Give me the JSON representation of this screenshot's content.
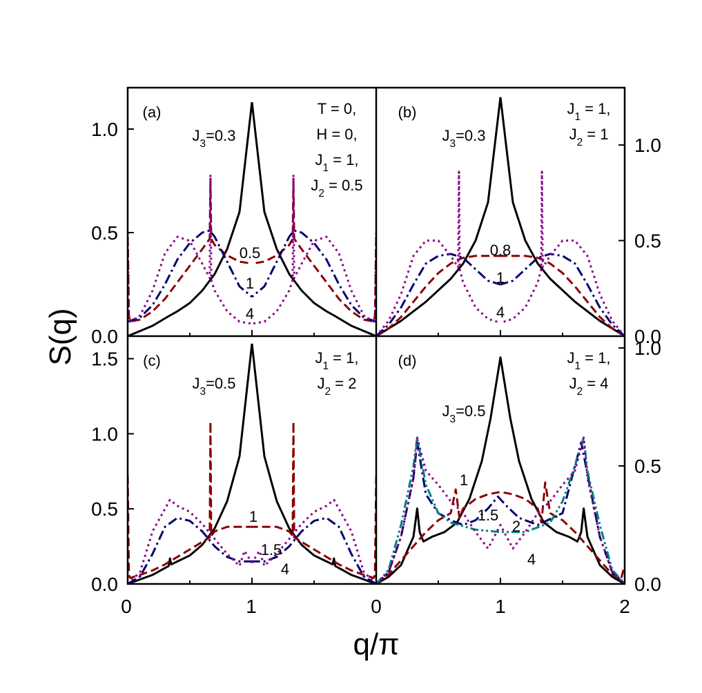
{
  "figure": {
    "ylabel": "S(q)",
    "xlabel": "q/π",
    "x_ticks": [
      "0",
      "1",
      "0",
      "1",
      "2"
    ]
  },
  "colors": {
    "black": "#000000",
    "red": "#8b0000",
    "blue": "#00006e",
    "purple": "#8b008b",
    "teal": "#008080"
  },
  "chart_data": [
    {
      "type": "line",
      "panel": "a",
      "panel_label": "(a)",
      "xlim": [
        0,
        1
      ],
      "ylim": [
        0,
        1.2
      ],
      "y_ticks": [
        "0.0",
        "0.5",
        "1.0"
      ],
      "y_side": "left",
      "annotation_lines": [
        "T = 0,",
        "H = 0,",
        "J1 = 1,",
        "J2 = 0.5"
      ],
      "curve_labels": [
        "J3=0.3",
        "0.5",
        "1",
        "4"
      ],
      "series": [
        {
          "label": "0.3",
          "color": "black",
          "dash": "solid",
          "x": [
            0,
            0.1,
            0.17,
            0.2,
            0.25,
            0.3,
            0.35,
            0.4,
            0.45,
            0.5
          ],
          "y": [
            0.0,
            0.05,
            0.1,
            0.12,
            0.16,
            0.22,
            0.3,
            0.42,
            0.6,
            1.13
          ]
        },
        {
          "label": "0.5",
          "color": "red",
          "dash": "dash",
          "x": [
            0,
            0.005,
            0.01,
            0.05,
            0.1,
            0.15,
            0.2,
            0.25,
            0.3,
            0.33,
            0.333,
            0.336,
            0.35,
            0.4,
            0.45,
            0.5
          ],
          "y": [
            0.48,
            0.1,
            0.07,
            0.08,
            0.12,
            0.18,
            0.26,
            0.34,
            0.42,
            0.47,
            0.76,
            0.47,
            0.44,
            0.39,
            0.36,
            0.35
          ]
        },
        {
          "label": "1",
          "color": "blue",
          "dash": "dashdot",
          "x": [
            0,
            0.05,
            0.1,
            0.15,
            0.2,
            0.25,
            0.3,
            0.33,
            0.35,
            0.4,
            0.45,
            0.5
          ],
          "y": [
            0.07,
            0.09,
            0.15,
            0.25,
            0.37,
            0.45,
            0.5,
            0.51,
            0.48,
            0.36,
            0.24,
            0.19
          ]
        },
        {
          "label": "4",
          "color": "purple",
          "dash": "dot",
          "x": [
            0,
            0.005,
            0.01,
            0.05,
            0.1,
            0.15,
            0.2,
            0.25,
            0.3,
            0.33,
            0.333,
            0.336,
            0.35,
            0.4,
            0.45,
            0.5
          ],
          "y": [
            0.5,
            0.09,
            0.07,
            0.1,
            0.22,
            0.4,
            0.48,
            0.46,
            0.35,
            0.28,
            0.78,
            0.27,
            0.22,
            0.12,
            0.07,
            0.06
          ]
        }
      ]
    },
    {
      "type": "line",
      "panel": "b",
      "panel_label": "(b)",
      "xlim": [
        0,
        1
      ],
      "ylim": [
        0,
        1.3
      ],
      "y_ticks": [
        "0.0",
        "0.5",
        "1.0"
      ],
      "y_side": "right",
      "annotation_lines": [
        "J1 = 1,",
        "J2 = 1"
      ],
      "curve_labels": [
        "J3=0.3",
        "0.8",
        "1",
        "4"
      ],
      "series": [
        {
          "label": "0.3",
          "color": "black",
          "dash": "solid",
          "x": [
            0,
            0.1,
            0.2,
            0.3,
            0.35,
            0.4,
            0.45,
            0.5
          ],
          "y": [
            0.0,
            0.08,
            0.18,
            0.3,
            0.38,
            0.5,
            0.7,
            1.25
          ]
        },
        {
          "label": "0.8",
          "color": "red",
          "dash": "dash",
          "x": [
            0,
            0.05,
            0.1,
            0.15,
            0.2,
            0.25,
            0.3,
            0.33,
            0.35,
            0.4,
            0.45,
            0.5
          ],
          "y": [
            0.0,
            0.04,
            0.1,
            0.18,
            0.26,
            0.33,
            0.38,
            0.4,
            0.41,
            0.42,
            0.42,
            0.42
          ]
        },
        {
          "label": "1",
          "color": "blue",
          "dash": "dashdot",
          "x": [
            0,
            0.05,
            0.1,
            0.15,
            0.2,
            0.25,
            0.3,
            0.35,
            0.4,
            0.45,
            0.5
          ],
          "y": [
            0.0,
            0.06,
            0.15,
            0.27,
            0.38,
            0.42,
            0.43,
            0.41,
            0.35,
            0.29,
            0.27
          ]
        },
        {
          "label": "4",
          "color": "purple",
          "dash": "dot",
          "x": [
            0,
            0.05,
            0.1,
            0.15,
            0.2,
            0.25,
            0.3,
            0.33,
            0.333,
            0.336,
            0.35,
            0.4,
            0.45,
            0.5
          ],
          "y": [
            0.0,
            0.08,
            0.22,
            0.42,
            0.5,
            0.5,
            0.42,
            0.36,
            0.86,
            0.35,
            0.28,
            0.15,
            0.09,
            0.07
          ]
        }
      ]
    },
    {
      "type": "line",
      "panel": "c",
      "panel_label": "(c)",
      "xlim": [
        0,
        1
      ],
      "ylim": [
        0,
        1.65
      ],
      "y_ticks": [
        "0.0",
        "0.5",
        "1.0",
        "1.5"
      ],
      "y_side": "left",
      "annotation_lines": [
        "J1 = 1,",
        "J2 = 2"
      ],
      "curve_labels": [
        "J3=0.5",
        "1",
        "1.5",
        "4"
      ],
      "series": [
        {
          "label": "0.5",
          "color": "black",
          "dash": "solid",
          "x": [
            0,
            0.1,
            0.165,
            0.17,
            0.175,
            0.2,
            0.25,
            0.3,
            0.35,
            0.4,
            0.45,
            0.5
          ],
          "y": [
            0.0,
            0.06,
            0.12,
            0.17,
            0.13,
            0.15,
            0.19,
            0.26,
            0.37,
            0.55,
            0.85,
            1.6
          ]
        },
        {
          "label": "1",
          "color": "red",
          "dash": "dash",
          "x": [
            0,
            0.005,
            0.01,
            0.05,
            0.1,
            0.15,
            0.2,
            0.25,
            0.3,
            0.33,
            0.333,
            0.336,
            0.35,
            0.4,
            0.45,
            0.5
          ],
          "y": [
            0.72,
            0.06,
            0.04,
            0.06,
            0.09,
            0.13,
            0.18,
            0.23,
            0.28,
            0.31,
            1.08,
            0.32,
            0.35,
            0.38,
            0.38,
            0.38
          ]
        },
        {
          "label": "1.5",
          "color": "blue",
          "dash": "dashdot",
          "x": [
            0,
            0.05,
            0.1,
            0.15,
            0.2,
            0.25,
            0.3,
            0.35,
            0.4,
            0.45,
            0.5
          ],
          "y": [
            0.0,
            0.05,
            0.2,
            0.38,
            0.44,
            0.42,
            0.35,
            0.25,
            0.18,
            0.15,
            0.15
          ]
        },
        {
          "label": "4",
          "color": "purple",
          "dash": "dot",
          "x": [
            0,
            0.05,
            0.1,
            0.15,
            0.17,
            0.2,
            0.25,
            0.3,
            0.35,
            0.4,
            0.45,
            0.47,
            0.5
          ],
          "y": [
            0.0,
            0.08,
            0.35,
            0.5,
            0.56,
            0.52,
            0.48,
            0.4,
            0.3,
            0.2,
            0.12,
            0.22,
            0.14
          ]
        }
      ]
    },
    {
      "type": "line",
      "panel": "d",
      "panel_label": "(d)",
      "xlim": [
        0,
        2
      ],
      "ylim": [
        0,
        1.05
      ],
      "y_ticks": [
        "0.0",
        "0.5",
        "1.0"
      ],
      "y_side": "right",
      "annotation_lines": [
        "J1 = 1,",
        "J2 = 4"
      ],
      "curve_labels": [
        "J3=0.5",
        "1",
        "1.5",
        "2",
        "4"
      ],
      "series": [
        {
          "label": "0.5",
          "color": "black",
          "dash": "solid",
          "x": [
            0,
            0.1,
            0.2,
            0.3,
            0.33,
            0.35,
            0.38,
            0.45,
            0.55,
            0.65,
            0.75,
            0.85,
            0.92,
            1.0,
            1.08,
            1.15,
            1.25,
            1.35,
            1.45,
            1.55,
            1.62,
            1.65,
            1.67,
            1.7,
            1.8,
            1.9,
            2.0
          ],
          "y": [
            0.0,
            0.03,
            0.08,
            0.2,
            0.32,
            0.22,
            0.18,
            0.2,
            0.22,
            0.26,
            0.36,
            0.52,
            0.7,
            0.96,
            0.7,
            0.52,
            0.36,
            0.26,
            0.22,
            0.2,
            0.18,
            0.22,
            0.32,
            0.2,
            0.08,
            0.03,
            0.0
          ]
        },
        {
          "label": "1",
          "color": "red",
          "dash": "dash",
          "x": [
            0,
            0.1,
            0.2,
            0.3,
            0.4,
            0.5,
            0.6,
            0.64,
            0.67,
            0.7,
            0.8,
            0.9,
            1.0,
            1.1,
            1.2,
            1.3,
            1.33,
            1.36,
            1.4,
            1.5,
            1.6,
            1.7,
            1.8,
            1.9,
            1.97,
            2.0
          ],
          "y": [
            0.0,
            0.04,
            0.1,
            0.16,
            0.22,
            0.27,
            0.3,
            0.4,
            0.28,
            0.32,
            0.36,
            0.38,
            0.39,
            0.38,
            0.36,
            0.32,
            0.26,
            0.43,
            0.3,
            0.27,
            0.22,
            0.16,
            0.1,
            0.04,
            0.02,
            0.08
          ]
        },
        {
          "label": "1.5",
          "color": "blue",
          "dash": "dashdot",
          "x": [
            0,
            0.1,
            0.2,
            0.3,
            0.33,
            0.4,
            0.5,
            0.6,
            0.7,
            0.8,
            0.9,
            0.98,
            1.05,
            1.15,
            1.3,
            1.5,
            1.65,
            1.8,
            1.9,
            2.0
          ],
          "y": [
            0.0,
            0.05,
            0.2,
            0.45,
            0.6,
            0.38,
            0.3,
            0.27,
            0.25,
            0.27,
            0.32,
            0.37,
            0.33,
            0.28,
            0.25,
            0.3,
            0.6,
            0.2,
            0.05,
            0.0
          ]
        },
        {
          "label": "2",
          "color": "teal",
          "dash": "dashdotdot",
          "x": [
            0,
            0.1,
            0.2,
            0.3,
            0.33,
            0.4,
            0.5,
            0.6,
            0.8,
            1.0,
            1.2,
            1.4,
            1.5,
            1.6,
            1.67,
            1.7,
            1.8,
            1.9,
            2.0
          ],
          "y": [
            0.0,
            0.06,
            0.25,
            0.5,
            0.62,
            0.42,
            0.3,
            0.26,
            0.23,
            0.22,
            0.22,
            0.26,
            0.35,
            0.5,
            0.62,
            0.48,
            0.25,
            0.06,
            0.0
          ]
        },
        {
          "label": "4",
          "color": "purple",
          "dash": "dot",
          "x": [
            0,
            0.1,
            0.2,
            0.3,
            0.33,
            0.4,
            0.5,
            0.6,
            0.7,
            0.8,
            0.9,
            1.0,
            1.1,
            1.2,
            1.3,
            1.4,
            1.5,
            1.6,
            1.67,
            1.7,
            1.8,
            1.9,
            2.0
          ],
          "y": [
            0.0,
            0.05,
            0.2,
            0.45,
            0.62,
            0.48,
            0.42,
            0.35,
            0.3,
            0.22,
            0.15,
            0.25,
            0.15,
            0.22,
            0.3,
            0.35,
            0.42,
            0.48,
            0.62,
            0.45,
            0.2,
            0.05,
            0.0
          ]
        }
      ]
    }
  ]
}
